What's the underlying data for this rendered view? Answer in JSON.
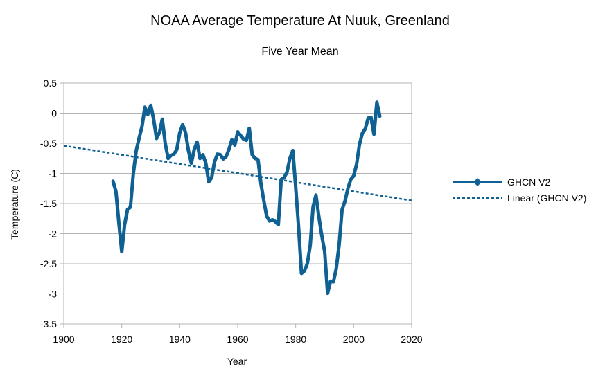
{
  "chart_data": {
    "type": "line",
    "title": "NOAA Average Temperature At Nuuk, Greenland",
    "subtitle": "Five Year Mean",
    "xlabel": "Year",
    "ylabel": "Temperature (C)",
    "xlim": [
      1900,
      2020
    ],
    "ylim": [
      -3.5,
      0.5
    ],
    "x_ticks": [
      "1900",
      "1920",
      "1940",
      "1960",
      "1980",
      "2000",
      "2020"
    ],
    "y_ticks": [
      "0.5",
      "0",
      "-0.5",
      "-1",
      "-1.5",
      "-2",
      "-2.5",
      "-3",
      "-3.5"
    ],
    "grid": "horizontal",
    "legend_position": "right",
    "colors": {
      "series": "#0e6192",
      "trend": "#0e6192",
      "grid": "#b3b3b3",
      "axis": "#b3b3b3"
    },
    "series": [
      {
        "name": "GHCN V2",
        "x": [
          1917,
          1918,
          1919,
          1920,
          1921,
          1922,
          1923,
          1924,
          1925,
          1926,
          1927,
          1928,
          1929,
          1930,
          1931,
          1932,
          1933,
          1934,
          1935,
          1936,
          1937,
          1938,
          1939,
          1940,
          1941,
          1942,
          1943,
          1944,
          1945,
          1946,
          1947,
          1948,
          1949,
          1950,
          1951,
          1952,
          1953,
          1954,
          1955,
          1956,
          1957,
          1958,
          1959,
          1960,
          1961,
          1962,
          1963,
          1964,
          1965,
          1966,
          1967,
          1968,
          1969,
          1970,
          1971,
          1972,
          1973,
          1974,
          1975,
          1976,
          1977,
          1978,
          1979,
          1980,
          1981,
          1982,
          1983,
          1984,
          1985,
          1986,
          1987,
          1988,
          1989,
          1990,
          1991,
          1992,
          1993,
          1994,
          1995,
          1996,
          1997,
          1998,
          1999,
          2000,
          2001,
          2002,
          2003,
          2004,
          2005,
          2006,
          2007,
          2008,
          2009
        ],
        "values": [
          -1.13,
          -1.3,
          -1.82,
          -2.3,
          -1.85,
          -1.6,
          -1.56,
          -1.0,
          -0.62,
          -0.41,
          -0.22,
          0.1,
          -0.02,
          0.13,
          -0.1,
          -0.42,
          -0.32,
          -0.1,
          -0.5,
          -0.75,
          -0.7,
          -0.68,
          -0.6,
          -0.33,
          -0.19,
          -0.32,
          -0.62,
          -0.83,
          -0.6,
          -0.48,
          -0.75,
          -0.69,
          -0.83,
          -1.14,
          -1.07,
          -0.81,
          -0.68,
          -0.69,
          -0.76,
          -0.72,
          -0.6,
          -0.44,
          -0.53,
          -0.31,
          -0.37,
          -0.43,
          -0.45,
          -0.25,
          -0.69,
          -0.75,
          -0.77,
          -1.17,
          -1.45,
          -1.71,
          -1.79,
          -1.77,
          -1.8,
          -1.85,
          -1.1,
          -1.07,
          -0.98,
          -0.75,
          -0.62,
          -1.23,
          -1.9,
          -2.66,
          -2.62,
          -2.5,
          -2.2,
          -1.55,
          -1.36,
          -1.72,
          -2.03,
          -2.3,
          -2.99,
          -2.79,
          -2.8,
          -2.58,
          -2.18,
          -1.6,
          -1.46,
          -1.25,
          -1.1,
          -1.04,
          -0.85,
          -0.52,
          -0.33,
          -0.26,
          -0.08,
          -0.07,
          -0.35,
          0.18,
          -0.05
        ]
      },
      {
        "name": "Linear (GHCN V2)",
        "x": [
          1900,
          2020
        ],
        "values": [
          -0.54,
          -1.45
        ]
      }
    ],
    "legend": [
      "GHCN V2",
      "Linear (GHCN V2)"
    ]
  }
}
